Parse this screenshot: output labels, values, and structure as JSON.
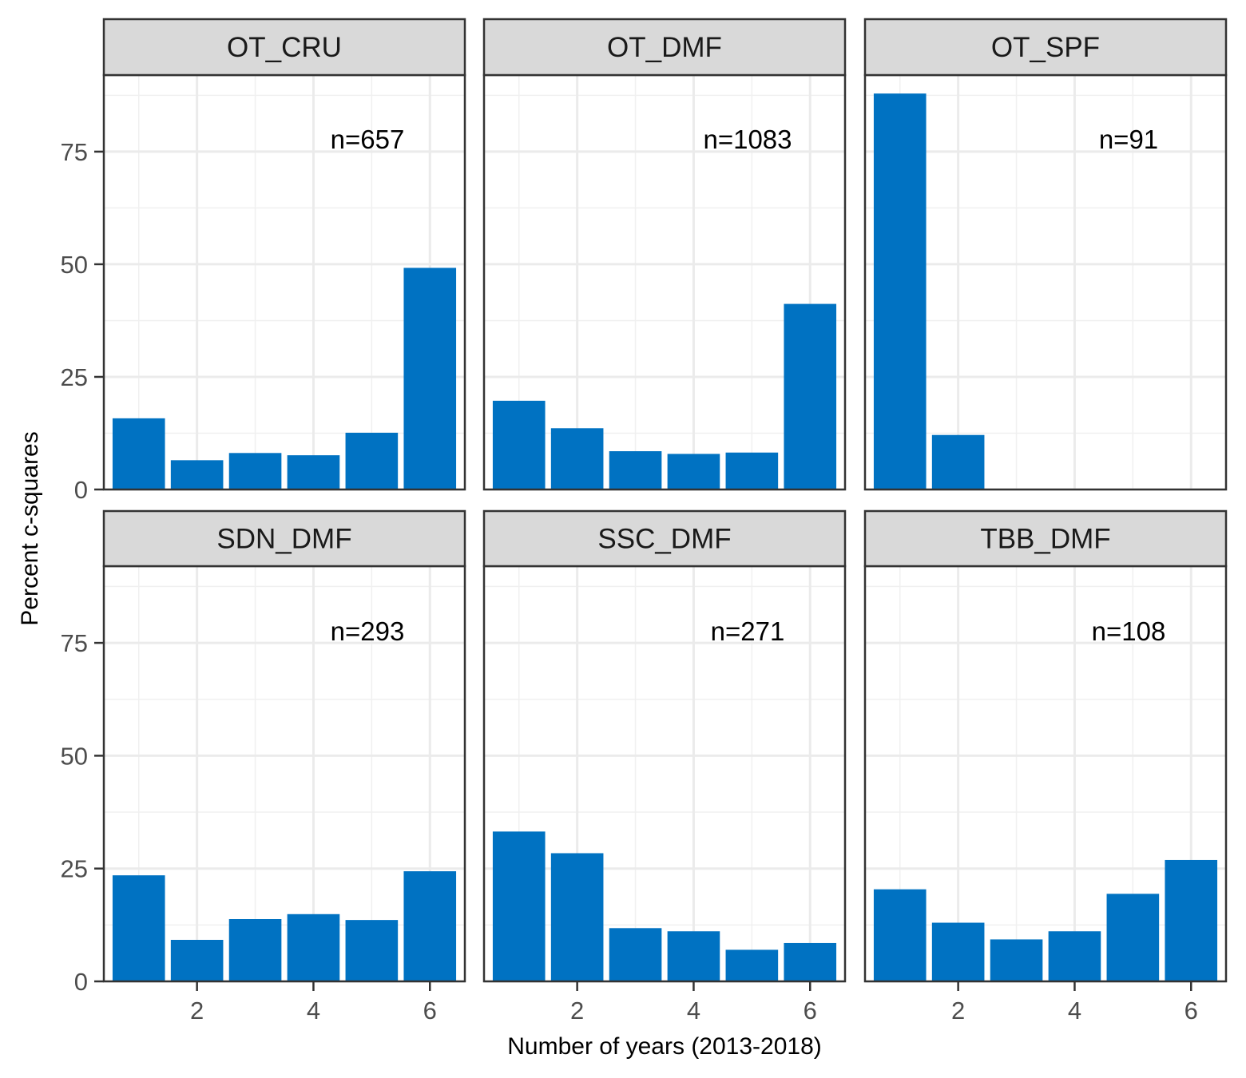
{
  "chart_data": {
    "type": "bar",
    "xlabel": "Number of years (2013-2018)",
    "ylabel": "Percent c-squares",
    "x": [
      1,
      2,
      3,
      4,
      5,
      6
    ],
    "xticks": [
      "2",
      "4",
      "6"
    ],
    "yticks": [
      "0",
      "25",
      "50",
      "75"
    ],
    "ylim": [
      0,
      92
    ],
    "xlim": [
      0.4,
      6.6
    ],
    "grid": true,
    "bar_color": "#0072C2",
    "panels": [
      {
        "name": "OT_CRU",
        "n_label": "n=657",
        "values": [
          15.8,
          6.5,
          8.1,
          7.6,
          12.6,
          49.2
        ]
      },
      {
        "name": "OT_DMF",
        "n_label": "n=1083",
        "values": [
          19.7,
          13.6,
          8.5,
          7.9,
          8.2,
          41.2
        ]
      },
      {
        "name": "OT_SPF",
        "n_label": "n=91",
        "values": [
          87.9,
          12.1,
          0,
          0,
          0,
          0
        ]
      },
      {
        "name": "SDN_DMF",
        "n_label": "n=293",
        "values": [
          23.5,
          9.2,
          13.8,
          14.9,
          13.6,
          24.4
        ]
      },
      {
        "name": "SSC_DMF",
        "n_label": "n=271",
        "values": [
          33.2,
          28.4,
          11.8,
          11.1,
          7.0,
          8.5
        ]
      },
      {
        "name": "TBB_DMF",
        "n_label": "n=108",
        "values": [
          20.4,
          13.0,
          9.3,
          11.1,
          19.4,
          26.9
        ]
      }
    ]
  }
}
